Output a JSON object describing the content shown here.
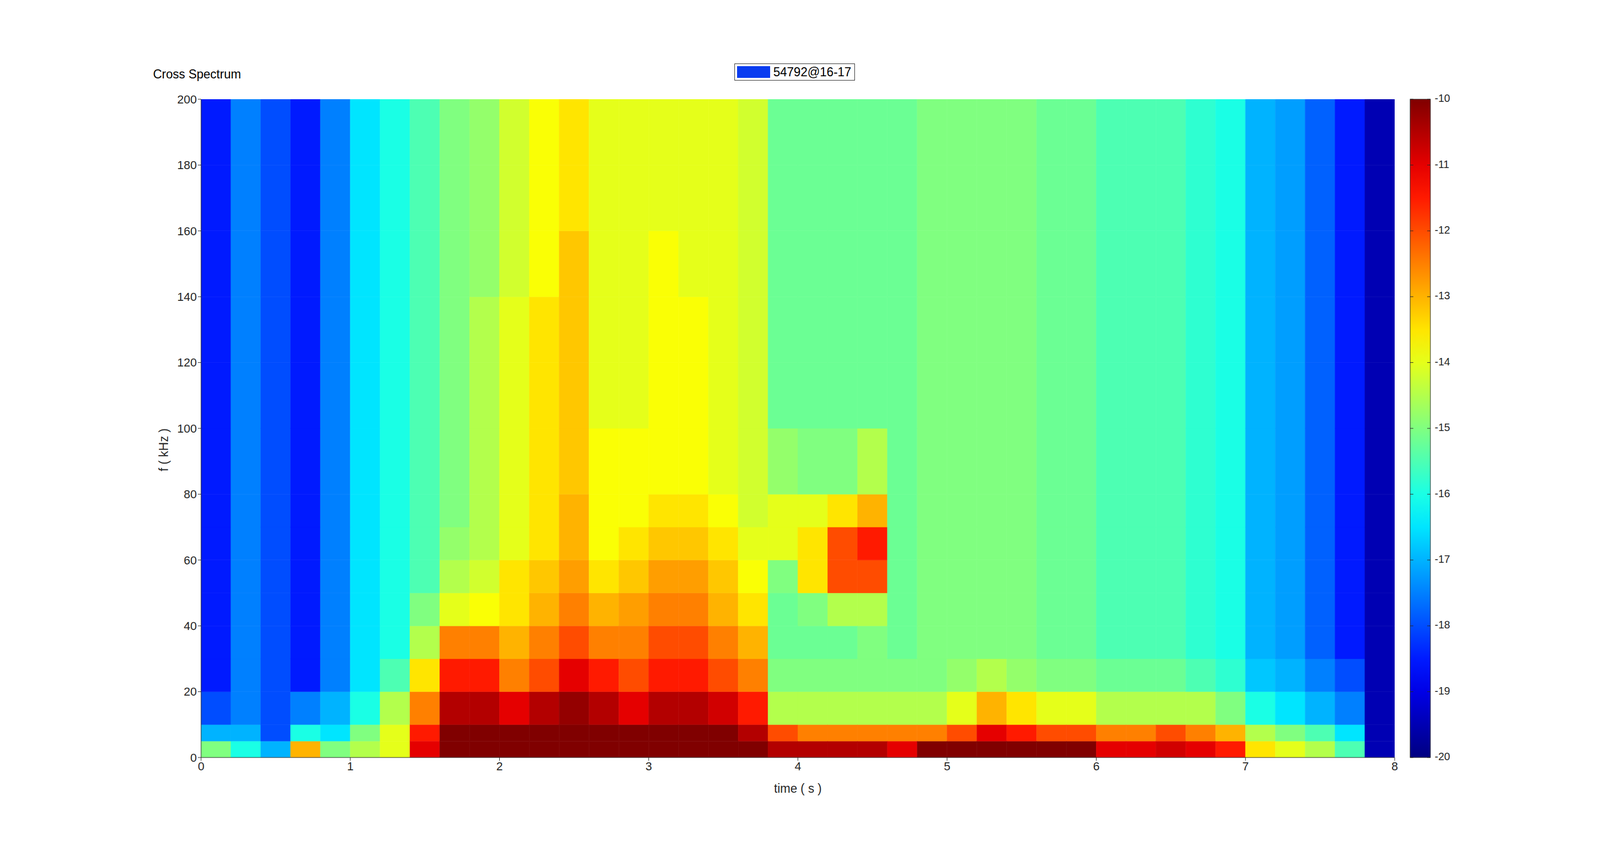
{
  "chart_data": {
    "type": "heatmap",
    "title": "Cross Spectrum",
    "xlabel": "time ( s )",
    "ylabel": "f ( kHz )",
    "series": [
      {
        "name": "54792@16-17",
        "color": "#0a3cf0"
      }
    ],
    "legend": "top",
    "xlim": [
      0,
      8
    ],
    "xticks": [
      0,
      1,
      2,
      3,
      4,
      5,
      6,
      7,
      8
    ],
    "ylim": [
      0,
      200
    ],
    "yticks": [
      0,
      20,
      40,
      60,
      80,
      100,
      120,
      140,
      160,
      180,
      200
    ],
    "x_edges": [
      0,
      0.2,
      0.4,
      0.6,
      0.8,
      1,
      1.2,
      1.4,
      1.6,
      1.8,
      2,
      2.2,
      2.4,
      2.6,
      2.8,
      3,
      3.2,
      3.4,
      3.6,
      3.8,
      4,
      4.2,
      4.4,
      4.6,
      4.8,
      5,
      5.2,
      5.4,
      5.6,
      5.8,
      6,
      6.2,
      6.4,
      6.6,
      6.8,
      7,
      7.2,
      7.4,
      7.6,
      7.8,
      8
    ],
    "y_edges": [
      0,
      5,
      10,
      20,
      30,
      40,
      50,
      60,
      70,
      80,
      100,
      120,
      140,
      160,
      180,
      200
    ],
    "cells": [
      [
        -15,
        -17,
        -18,
        -18.5,
        -18.5,
        -18.5,
        -18.5,
        -18.5,
        -18.5,
        -18.5,
        -18.5,
        -18.5,
        -18.5,
        -18.5,
        -18.5
      ],
      [
        -16,
        -17,
        -17.5,
        -17.5,
        -17.5,
        -17.5,
        -17.5,
        -17.5,
        -17.5,
        -17.5,
        -17.5,
        -17.5,
        -17.5,
        -17.5,
        -17.5
      ],
      [
        -17,
        -18,
        -18,
        -18,
        -18,
        -18,
        -18,
        -18,
        -18,
        -18,
        -18,
        -18,
        -18,
        -18,
        -18
      ],
      [
        -13,
        -16,
        -17.5,
        -18.5,
        -18.5,
        -18.5,
        -18.5,
        -18.5,
        -18.5,
        -18.5,
        -18.5,
        -18.5,
        -18.5,
        -18.5,
        -18.5
      ],
      [
        -15,
        -16.5,
        -17,
        -17.5,
        -17.5,
        -17.5,
        -17.5,
        -17.5,
        -17.5,
        -17.5,
        -17.5,
        -17.5,
        -17.5,
        -17.5,
        -17.5
      ],
      [
        -14.5,
        -15,
        -16,
        -16.5,
        -16.5,
        -16.5,
        -16.5,
        -16.5,
        -16.5,
        -16.5,
        -16.5,
        -16.5,
        -16.5,
        -16.5,
        -16.5
      ],
      [
        -14,
        -14,
        -14.5,
        -15.5,
        -16,
        -16,
        -16,
        -16,
        -16,
        -16,
        -16,
        -16,
        -16,
        -16,
        -16
      ],
      [
        -11,
        -11.5,
        -12.5,
        -13.5,
        -14.5,
        -15,
        -15.5,
        -15.5,
        -15.5,
        -15.5,
        -15.5,
        -15.5,
        -15.5,
        -15.5,
        -15.5
      ],
      [
        -10,
        -10,
        -10.5,
        -11.5,
        -12.5,
        -14,
        -14.5,
        -14.8,
        -15,
        -15,
        -15,
        -15,
        -15,
        -15,
        -15
      ],
      [
        -10,
        -10,
        -10.5,
        -11.5,
        -12.5,
        -13.8,
        -14.2,
        -14.5,
        -14.5,
        -14.5,
        -14.5,
        -14.5,
        -14.8,
        -14.8,
        -14.8
      ],
      [
        -10,
        -10,
        -11,
        -12.5,
        -13,
        -13.5,
        -13.5,
        -14,
        -14,
        -14,
        -14,
        -14,
        -14.2,
        -14.2,
        -14.2
      ],
      [
        -10,
        -10,
        -10.5,
        -12,
        -12.5,
        -13,
        -13.2,
        -13.5,
        -13.5,
        -13.5,
        -13.5,
        -13.5,
        -13.8,
        -13.8,
        -13.8
      ],
      [
        -10,
        -10,
        -10.2,
        -11,
        -12,
        -12.5,
        -12.8,
        -13,
        -13,
        -13.2,
        -13.2,
        -13.2,
        -13.2,
        -13.5,
        -13.5
      ],
      [
        -10,
        -10,
        -10.5,
        -11.5,
        -12.5,
        -13,
        -13.5,
        -13.8,
        -13.8,
        -13.8,
        -14,
        -14,
        -14,
        -14,
        -14
      ],
      [
        -10,
        -10,
        -11,
        -12,
        -12.5,
        -12.8,
        -13.2,
        -13.5,
        -13.8,
        -13.8,
        -14,
        -14,
        -14,
        -14,
        -14
      ],
      [
        -10,
        -10,
        -10.5,
        -11.5,
        -12,
        -12.5,
        -12.8,
        -13.2,
        -13.5,
        -13.8,
        -13.8,
        -13.8,
        -13.8,
        -14,
        -14
      ],
      [
        -10,
        -10,
        -10.5,
        -11.5,
        -12,
        -12.5,
        -12.8,
        -13.2,
        -13.5,
        -13.8,
        -13.8,
        -13.8,
        -14,
        -14,
        -14
      ],
      [
        -10,
        -10,
        -10.8,
        -12,
        -12.5,
        -13,
        -13.2,
        -13.5,
        -13.8,
        -14,
        -14,
        -14,
        -14,
        -14,
        -14
      ],
      [
        -10,
        -10.5,
        -11.5,
        -12.5,
        -13,
        -13.5,
        -13.8,
        -14,
        -14.2,
        -14.2,
        -14.2,
        -14.2,
        -14.2,
        -14.2,
        -14.2
      ],
      [
        -10.5,
        -12,
        -14.5,
        -15,
        -15.2,
        -15.2,
        -15,
        -14,
        -14,
        -14.8,
        -15.2,
        -15.2,
        -15.2,
        -15.2,
        -15.2
      ],
      [
        -10.5,
        -12.5,
        -14.5,
        -15,
        -15.2,
        -15,
        -13.5,
        -13.5,
        -14,
        -15,
        -15.2,
        -15.2,
        -15.2,
        -15.2,
        -15.2
      ],
      [
        -10.5,
        -12.5,
        -14.5,
        -15,
        -15.2,
        -14.5,
        -12,
        -12,
        -13.5,
        -15,
        -15.2,
        -15.2,
        -15.2,
        -15.2,
        -15.2
      ],
      [
        -10.5,
        -12.5,
        -14.5,
        -15,
        -15,
        -14.5,
        -12,
        -11.5,
        -13,
        -14.5,
        -15.2,
        -15.2,
        -15.2,
        -15.2,
        -15.2
      ],
      [
        -11,
        -12.5,
        -14.5,
        -15,
        -15.2,
        -15.2,
        -15.2,
        -15.2,
        -15.2,
        -15.2,
        -15.2,
        -15.2,
        -15.2,
        -15.2,
        -15.2
      ],
      [
        -10,
        -12.5,
        -14.5,
        -15,
        -15,
        -15,
        -15,
        -15,
        -15,
        -15,
        -15,
        -15,
        -15,
        -15,
        -15
      ],
      [
        -10,
        -12,
        -14,
        -14.8,
        -15,
        -15,
        -15,
        -15,
        -15,
        -15,
        -15,
        -15,
        -15,
        -15,
        -15
      ],
      [
        -10,
        -11,
        -13,
        -14.5,
        -15,
        -15,
        -15,
        -15,
        -15,
        -15,
        -15,
        -15,
        -15,
        -15,
        -15
      ],
      [
        -10,
        -11.5,
        -13.5,
        -14.8,
        -15,
        -15,
        -15,
        -15,
        -15,
        -15,
        -15,
        -15,
        -15,
        -15,
        -15
      ],
      [
        -10,
        -12,
        -14,
        -15,
        -15.2,
        -15.2,
        -15.2,
        -15.2,
        -15.2,
        -15.2,
        -15.2,
        -15.2,
        -15.2,
        -15.2,
        -15.2
      ],
      [
        -10,
        -12,
        -14,
        -15,
        -15.2,
        -15.2,
        -15.2,
        -15.2,
        -15.2,
        -15.2,
        -15.2,
        -15.2,
        -15.2,
        -15.2,
        -15.2
      ],
      [
        -11,
        -12.5,
        -14.5,
        -15.2,
        -15.5,
        -15.5,
        -15.5,
        -15.5,
        -15.5,
        -15.5,
        -15.5,
        -15.5,
        -15.5,
        -15.5,
        -15.5
      ],
      [
        -11,
        -12.5,
        -14.5,
        -15.2,
        -15.5,
        -15.5,
        -15.5,
        -15.5,
        -15.5,
        -15.5,
        -15.5,
        -15.5,
        -15.5,
        -15.5,
        -15.5
      ],
      [
        -10.8,
        -12,
        -14.5,
        -15.2,
        -15.5,
        -15.5,
        -15.5,
        -15.5,
        -15.5,
        -15.5,
        -15.5,
        -15.5,
        -15.5,
        -15.5,
        -15.5
      ],
      [
        -11,
        -12.5,
        -14.5,
        -15.5,
        -15.8,
        -15.8,
        -15.8,
        -15.8,
        -15.8,
        -15.8,
        -15.8,
        -15.8,
        -15.8,
        -15.8,
        -15.8
      ],
      [
        -11.5,
        -13,
        -15,
        -15.8,
        -16,
        -16,
        -16,
        -16,
        -16,
        -16,
        -16,
        -16,
        -16,
        -16,
        -16
      ],
      [
        -13.5,
        -14.5,
        -16,
        -16.8,
        -17,
        -17,
        -17,
        -17,
        -17,
        -17,
        -17,
        -17,
        -17,
        -17,
        -17
      ],
      [
        -14,
        -15,
        -16.5,
        -17,
        -17.2,
        -17.2,
        -17.2,
        -17.2,
        -17.2,
        -17.2,
        -17.2,
        -17.2,
        -17.2,
        -17.2,
        -17.2
      ],
      [
        -14.5,
        -15.5,
        -17,
        -17.5,
        -17.8,
        -17.8,
        -17.8,
        -17.8,
        -17.8,
        -17.8,
        -17.8,
        -17.8,
        -17.8,
        -17.8,
        -17.8
      ],
      [
        -15.5,
        -16.5,
        -17.5,
        -18,
        -18.5,
        -18.5,
        -18.5,
        -18.5,
        -18.5,
        -18.5,
        -18.5,
        -18.5,
        -18.5,
        -18.5,
        -18.5
      ],
      [
        -19.5,
        -19.5,
        -19.5,
        -19.5,
        -19.5,
        -19.5,
        -19.5,
        -19.5,
        -19.5,
        -19.5,
        -19.5,
        -19.5,
        -19.5,
        -19.5,
        -19.5
      ]
    ],
    "colorbar": {
      "lim": [
        -20,
        -10
      ],
      "ticks": [
        -20,
        -19,
        -18,
        -17,
        -16,
        -15,
        -14,
        -13,
        -12,
        -11,
        -10
      ]
    }
  }
}
